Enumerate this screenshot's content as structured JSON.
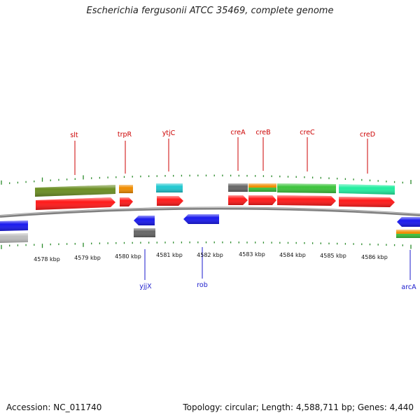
{
  "title": "Escherichia fergusonii ATCC 35469, complete genome",
  "footer": {
    "accession": "Accession: NC_011740",
    "summary": "Topology: circular; Length: 4,588,711 bp; Genes: 4,440"
  },
  "colors": {
    "cds": "#ff1a1a",
    "reverse": "#1a1aee",
    "gene_label_top": "#cc0000",
    "gene_label_bottom": "#1a1acc",
    "backbone": "#808080",
    "tick": "#2a8a2a",
    "olive": "#6b8e23",
    "orange": "#f08c00",
    "cyan": "#20c8d0",
    "gray": "#666666",
    "green": "#3cc43c",
    "mint": "#22eea0",
    "lightgray": "#bdbdbd"
  },
  "scale_labels": [
    "4578 kbp",
    "4579 kbp",
    "4580 kbp",
    "4581 kbp",
    "4582 kbp",
    "4583 kbp",
    "4584 kbp",
    "4585 kbp",
    "4586 kbp"
  ],
  "genes_top": [
    {
      "name": "slt"
    },
    {
      "name": "trpR"
    },
    {
      "name": "ytjC"
    },
    {
      "name": "creA"
    },
    {
      "name": "creB"
    },
    {
      "name": "creC"
    },
    {
      "name": "creD"
    }
  ],
  "genes_bottom": [
    {
      "name": "yjjX"
    },
    {
      "name": "rob"
    },
    {
      "name": "arcA"
    }
  ]
}
